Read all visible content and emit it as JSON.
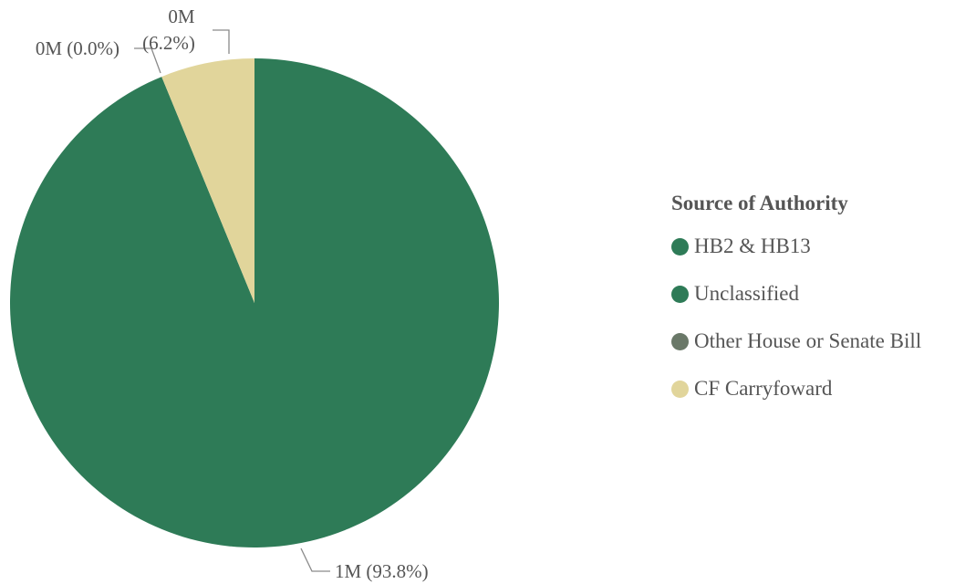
{
  "chart_data": {
    "type": "pie",
    "title": "",
    "legend_title": "Source of Authority",
    "legend_position": "right",
    "series": [
      {
        "name": "HB2 & HB13",
        "value_label": "1M",
        "percent": 93.8,
        "percent_label": "(93.8%)",
        "color": "#2e7b57"
      },
      {
        "name": "Unclassified",
        "value_label": "0M",
        "percent": 0.0,
        "percent_label": "(0.0%)",
        "color": "#2e7b57"
      },
      {
        "name": "Other House or Senate Bill",
        "value_label": "",
        "percent": 0.0,
        "percent_label": "",
        "color": "#6a7868"
      },
      {
        "name": "CF Carryfoward",
        "value_label": "0M",
        "percent": 6.2,
        "percent_label": "(6.2%)",
        "color": "#e1d59b"
      }
    ]
  }
}
